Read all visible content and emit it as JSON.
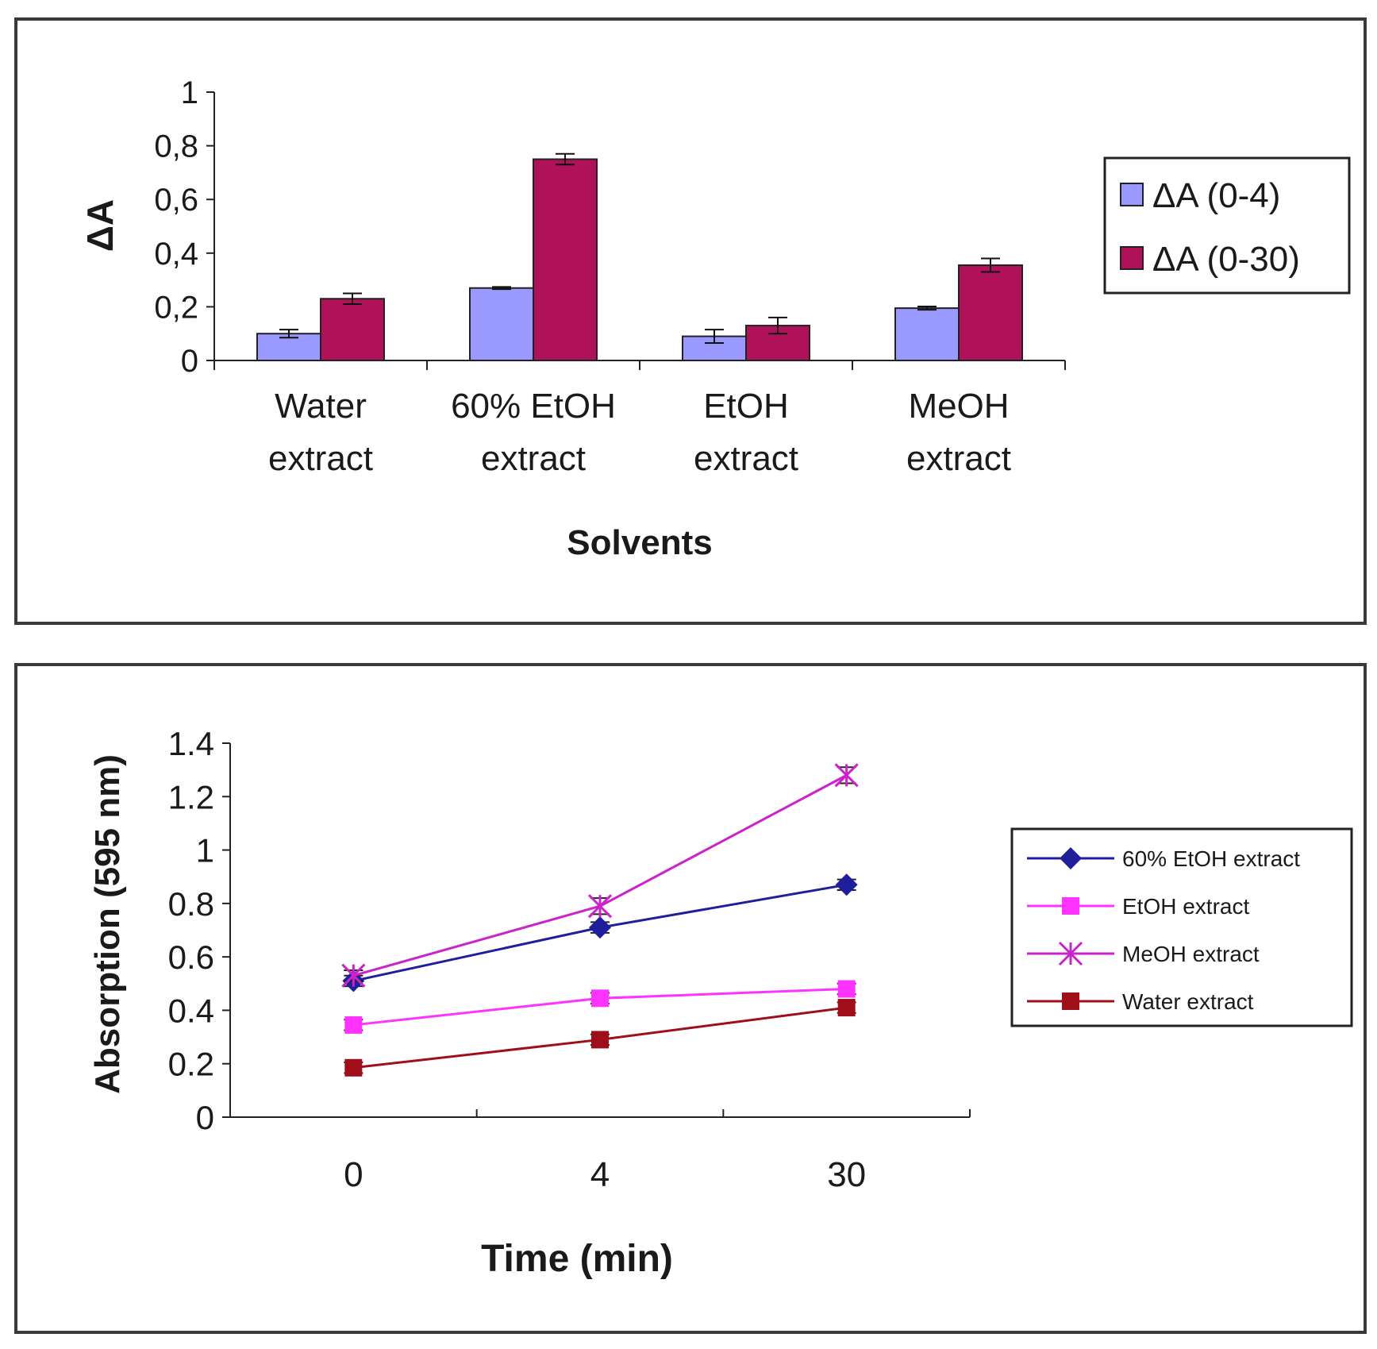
{
  "chart_data": [
    {
      "type": "bar",
      "title": "",
      "xlabel": "Solvents",
      "ylabel": "ΔA",
      "ylim": [
        0,
        1
      ],
      "yticks": [
        "0",
        "0,2",
        "0,4",
        "0,6",
        "0,8",
        "1"
      ],
      "categories": [
        [
          "Water",
          "extract"
        ],
        [
          "60% EtOH",
          "extract"
        ],
        [
          "EtOH",
          "extract"
        ],
        [
          "MeOH",
          "extract"
        ]
      ],
      "series": [
        {
          "name": "ΔA (0-4)",
          "color": "#9999ff",
          "values": [
            0.1,
            0.27,
            0.09,
            0.195
          ],
          "errors": [
            0.015,
            0.004,
            0.025,
            0.006
          ]
        },
        {
          "name": "ΔA (0-30)",
          "color": "#b0125a",
          "values": [
            0.23,
            0.75,
            0.13,
            0.355
          ],
          "errors": [
            0.02,
            0.02,
            0.03,
            0.025
          ]
        }
      ],
      "legend_position": "right"
    },
    {
      "type": "line",
      "title": "",
      "xlabel": "Time (min)",
      "ylabel": "Absorption (595 nm)",
      "ylim": [
        0,
        1.4
      ],
      "yticks": [
        "0",
        "0.2",
        "0.4",
        "0.6",
        "0.8",
        "1",
        "1.2",
        "1.4"
      ],
      "categories": [
        "0",
        "4",
        "30"
      ],
      "series": [
        {
          "name": "60% EtOH extract",
          "color": "#1f1f9e",
          "marker": "diamond",
          "values": [
            0.51,
            0.71,
            0.87
          ],
          "errors": [
            0.02,
            0.02,
            0.02
          ]
        },
        {
          "name": "EtOH extract",
          "color": "#ff33ff",
          "marker": "square",
          "values": [
            0.345,
            0.445,
            0.48
          ],
          "errors": [
            0.02,
            0.02,
            0.02
          ]
        },
        {
          "name": "MeOH extract",
          "color": "#cc22cc",
          "marker": "star",
          "values": [
            0.53,
            0.79,
            1.28
          ],
          "errors": [
            0.02,
            0.03,
            0.03
          ]
        },
        {
          "name": "Water extract",
          "color": "#9e0f1a",
          "marker": "square",
          "values": [
            0.185,
            0.29,
            0.41
          ],
          "errors": [
            0.02,
            0.02,
            0.02
          ]
        }
      ],
      "legend_position": "right"
    }
  ]
}
